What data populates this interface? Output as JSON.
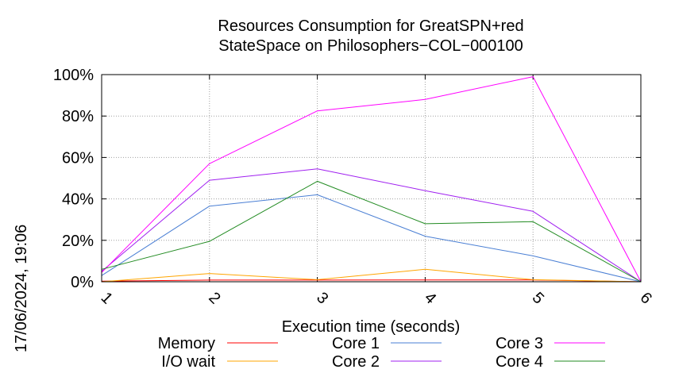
{
  "chart_data": {
    "type": "line",
    "title": [
      "Resources Consumption for GreatSPN+red",
      "StateSpace on Philosophers−COL−000100"
    ],
    "xlabel": "Execution time (seconds)",
    "ylabel": "",
    "x": [
      1,
      2,
      3,
      4,
      5,
      6
    ],
    "x_ticks": [
      "1",
      "2",
      "3",
      "4",
      "5",
      "6"
    ],
    "y_ticks": [
      "0%",
      "20%",
      "40%",
      "60%",
      "80%",
      "100%"
    ],
    "xlim": [
      1,
      6
    ],
    "ylim": [
      0,
      100
    ],
    "grid": true,
    "legend_position": "bottom",
    "series": [
      {
        "name": "Memory",
        "color": "#ff0000",
        "values": [
          0.3,
          0.8,
          0.8,
          0.9,
          0.9,
          0
        ]
      },
      {
        "name": "I/O wait",
        "color": "#ffa500",
        "values": [
          0,
          4,
          1,
          6,
          1,
          0
        ]
      },
      {
        "name": "Core 1",
        "color": "#4a7fd4",
        "values": [
          3,
          36.5,
          42,
          22,
          12.5,
          0
        ]
      },
      {
        "name": "Core 2",
        "color": "#a020f0",
        "values": [
          5,
          49,
          54.5,
          44,
          34,
          0
        ]
      },
      {
        "name": "Core 3",
        "color": "#ff00ff",
        "values": [
          4.5,
          57,
          82.5,
          88,
          99,
          0
        ]
      },
      {
        "name": "Core 4",
        "color": "#228b22",
        "values": [
          6,
          19.5,
          48.5,
          28,
          29,
          0
        ]
      }
    ]
  },
  "timestamp": "17/06/2024, 19:06"
}
